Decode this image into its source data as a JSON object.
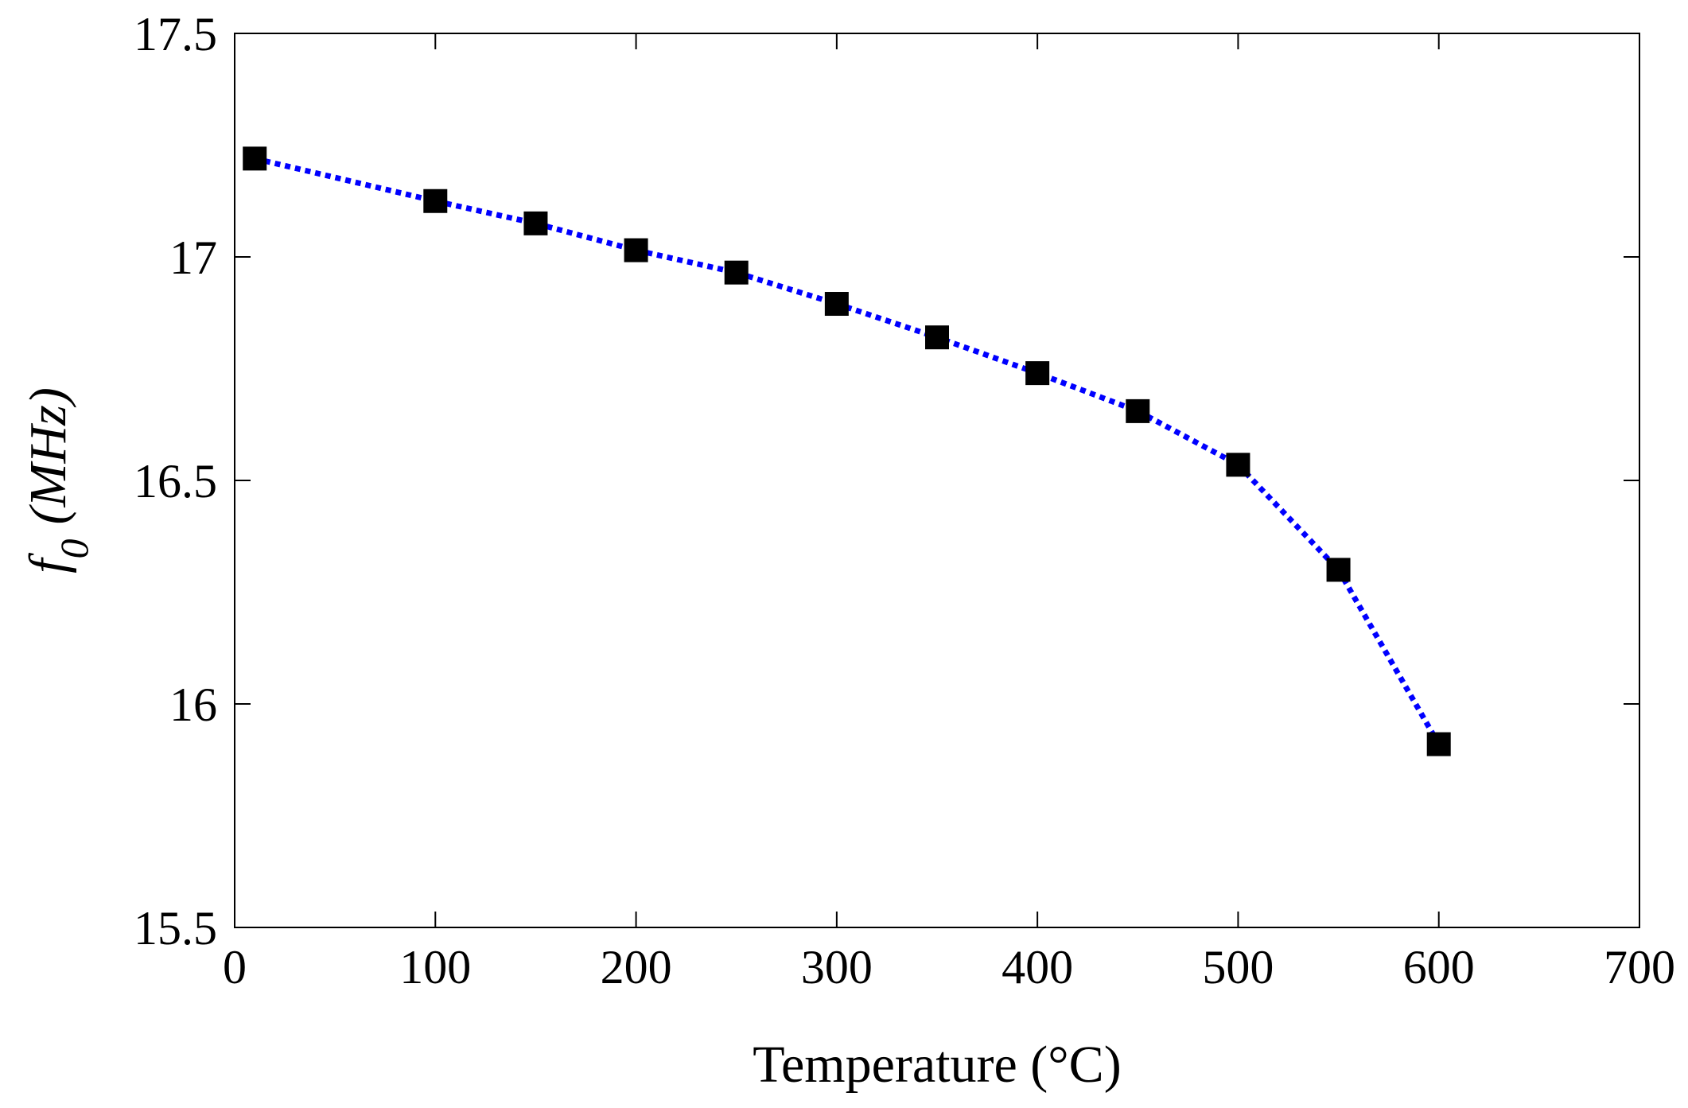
{
  "chart_data": {
    "type": "line",
    "title": "",
    "xlabel": "Temperature (°C)",
    "ylabel": {
      "symbol": "f",
      "subscript": "0",
      "unit": "(MHz)"
    },
    "xlim": [
      0,
      700
    ],
    "ylim": [
      15.5,
      17.5
    ],
    "xticks": [
      0,
      100,
      200,
      300,
      400,
      500,
      600,
      700
    ],
    "xtick_labels": [
      "0",
      "100",
      "200",
      "300",
      "400",
      "500",
      "600",
      "700"
    ],
    "yticks": [
      15.5,
      16,
      16.5,
      17,
      17.5
    ],
    "ytick_labels": [
      "15.5",
      "16",
      "16.5",
      "17",
      "17.5"
    ],
    "grid": false,
    "legend": null,
    "series": [
      {
        "name": "f0",
        "line_color": "#0000ff",
        "line_style": "dotted",
        "marker": "square",
        "marker_color": "#000000",
        "x": [
          10,
          100,
          150,
          200,
          250,
          300,
          350,
          400,
          450,
          500,
          550,
          600
        ],
        "y": [
          17.22,
          17.125,
          17.075,
          17.015,
          16.965,
          16.895,
          16.82,
          16.74,
          16.655,
          16.535,
          16.3,
          15.91
        ]
      }
    ]
  }
}
